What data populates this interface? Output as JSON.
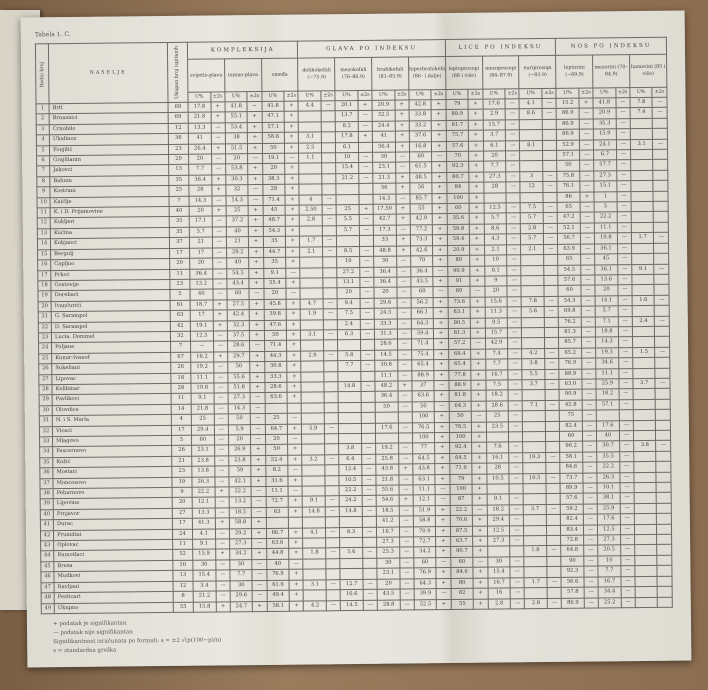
{
  "title": "Tabela 1. C.",
  "headers": {
    "no": "Redni broj",
    "name": "NASELJE",
    "n": "Ukupan broj ispitanih",
    "pct": "U%",
    "sig": "±2s",
    "groups": [
      {
        "label": "KOMPLEKSIJA",
        "subs": [
          "svijetlo-plava",
          "tamno-plava",
          "smeđa"
        ]
      },
      {
        "label": "GLAVA PO INDEKSU",
        "subs": [
          "dolihokefali (−75.9)",
          "mezokefali (76–80.9)",
          "brahikefali (81–85.9)",
          "hiperbrahikefali (86– i dalje)"
        ]
      },
      {
        "label": "LICE PO INDEKSU",
        "subs": [
          "leptoprosopi (88 i više)",
          "mezoprosopi (84–87.9)",
          "euriprosopi (−83.9)"
        ]
      },
      {
        "label": "NOS PO INDEKSU",
        "subs": [
          "leptorini (−69.9)",
          "mezorini (70–84.9)",
          "hamerini (85 i više)"
        ]
      }
    ]
  },
  "rows": [
    [
      "1",
      "Brtl",
      "69",
      "17.8",
      "+",
      "41.8",
      "−",
      "41.8",
      "+",
      "4.4",
      "—",
      "20.1",
      "+",
      "20.9",
      "+",
      "42.8",
      "+",
      "79",
      "+",
      "17.6",
      "—",
      "4.1",
      "—",
      "15.2",
      "+",
      "41.8",
      "—",
      "7.8",
      "—"
    ],
    [
      "2",
      "Brnazaici",
      "69",
      "21.8",
      "+",
      "55.1",
      "+",
      "47.1",
      "+",
      "",
      "",
      "13.7",
      "—",
      "32.5",
      "+",
      "33.8",
      "+",
      "89.9",
      "+",
      "2.9",
      "—",
      "8.6",
      "—",
      "86.9",
      "—",
      "20.9",
      "—",
      "7.4",
      "—"
    ],
    [
      "3",
      "Crnobilo",
      "12",
      "13.3",
      "—",
      "53.4",
      "+",
      "57.1",
      "+",
      "",
      "",
      "8.2",
      "—",
      "24.4",
      "+",
      "33.2",
      "+",
      "81.7",
      "+",
      "15.7",
      "—",
      "",
      "",
      "86.9",
      "—",
      "35.3",
      "—",
      "",
      ""
    ],
    [
      "4",
      "Ukulinoz",
      "36",
      "41",
      "—",
      "38",
      "+",
      "58.8",
      "+",
      "3.1",
      "",
      "17.8",
      "+",
      "41",
      "+",
      "37.6",
      "+",
      "75.7",
      "+",
      "3.7",
      "—",
      "",
      "",
      "86.9",
      "—",
      "15.9",
      "—",
      "",
      ""
    ],
    [
      "5",
      "Fonjilić",
      "23",
      "26.4",
      "+",
      "51.5",
      "+",
      "50",
      "+",
      "2.5",
      "",
      "6.1",
      "",
      "56.4",
      "+",
      "16.8",
      "+",
      "57.6",
      "+",
      "6.1",
      "—",
      "8.1",
      "",
      "52.9",
      "—",
      "24.1",
      "—",
      "3.1",
      "—"
    ],
    [
      "6",
      "Grajilianin",
      "20",
      "20",
      "—",
      "20",
      "—",
      "19.1",
      "—",
      "1.1",
      "",
      "10",
      "—",
      "30",
      "—",
      "60",
      "—",
      "70",
      "+",
      "20",
      "—",
      "",
      "",
      "57.1",
      "—",
      "6.7",
      "—",
      "",
      ""
    ],
    [
      "7",
      "Jakovci",
      "13",
      "7.7",
      "—",
      "53.8",
      "+",
      "20",
      "+",
      "",
      "",
      "15.4",
      "—",
      "23.1",
      "—",
      "61.5",
      "+",
      "92.3",
      "+",
      "7.7",
      "—",
      "",
      "",
      "50",
      "—",
      "57.7",
      "—",
      "",
      ""
    ],
    [
      "8",
      "Bahum",
      "35",
      "36.4",
      "+",
      "30.3",
      "+",
      "38.3",
      "+",
      "",
      "",
      "21.2",
      "—",
      "21.3",
      "+",
      "48.5",
      "+",
      "80.7",
      "+",
      "27.3",
      "—",
      "3",
      "—",
      "75.8",
      "—",
      "27.3",
      "—",
      "",
      ""
    ],
    [
      "9",
      "Kostrani",
      "25",
      "28",
      "+",
      "32",
      "—",
      "28",
      "+",
      "",
      "",
      "",
      "",
      "56",
      "+",
      "56",
      "+",
      "84",
      "+",
      "28",
      "—",
      "12",
      "—",
      "76.1",
      "—",
      "15.1",
      "—",
      "",
      ""
    ],
    [
      "10",
      "Kaićlje",
      "7",
      "14.3",
      "—",
      "14.3",
      "—",
      "71.4",
      "+",
      "4",
      "—",
      "",
      "",
      "14.3",
      "—",
      "85.7",
      "+",
      "100",
      "+",
      "",
      "",
      "",
      "",
      "86",
      "+",
      "1",
      "—",
      "",
      ""
    ],
    [
      "11",
      "K. i D. Prijamovine",
      "40",
      "20",
      "+",
      "25",
      "+",
      "45",
      "+",
      "2.50",
      "—",
      "25",
      "+",
      "17.50",
      "+",
      "55",
      "+",
      "60",
      "+",
      "12.5",
      "—",
      "7.5",
      "—",
      "65",
      "—",
      "5",
      "—",
      "",
      ""
    ],
    [
      "12",
      "Kukljeri",
      "35",
      "17.1",
      "—",
      "37.2",
      "+",
      "48.7",
      "+",
      "2.8",
      "—",
      "5.5",
      "—",
      "42.7",
      "+",
      "42.9",
      "+",
      "35.6",
      "+",
      "5.7",
      "—",
      "5.7",
      "—",
      "47.2",
      "—",
      "22.2",
      "—",
      "",
      ""
    ],
    [
      "13",
      "Kućina",
      "35",
      "5.7",
      "—",
      "40",
      "+",
      "54.3",
      "+",
      "",
      "",
      "5.7",
      "—",
      "17.3",
      "—",
      "77.2",
      "+",
      "59.8",
      "+",
      "8.6",
      "—",
      "2.8",
      "—",
      "52.1",
      "—",
      "11.1",
      "—",
      "",
      ""
    ],
    [
      "14",
      "Kobjanci",
      "37",
      "21",
      "—",
      "21",
      "+",
      "35",
      "+",
      "1.7",
      "—",
      "",
      "",
      "33",
      "+",
      "73.3",
      "+",
      "59.4",
      "+",
      "4.3",
      "—",
      "5.7",
      "—",
      "56.7",
      "—",
      "10.8",
      "—",
      "1.7",
      "—"
    ],
    [
      "15",
      "Bergulj",
      "17",
      "17",
      "—",
      "29.2",
      "+",
      "44.7",
      "+",
      "2.1",
      "—",
      "8.5",
      "—",
      "48.8",
      "+",
      "42.6",
      "+",
      "20.9",
      "+",
      "2.1",
      "—",
      "2.1",
      "—",
      "63.9",
      "—",
      "36.1",
      "—",
      "",
      ""
    ],
    [
      "16",
      "Capljuo",
      "20",
      "20",
      "—",
      "40",
      "+",
      "35",
      "+",
      "",
      "",
      "10",
      "—",
      "30",
      "—",
      "70",
      "+",
      "80",
      "+",
      "10",
      "—",
      "",
      "",
      "65",
      "—",
      "45",
      "—",
      "",
      ""
    ],
    [
      "17",
      "Prkoć",
      "11",
      "36.4",
      "—",
      "54.5",
      "+",
      "9.1",
      "—",
      "",
      "",
      "27.2",
      "—",
      "36.4",
      "—",
      "36.4",
      "—",
      "90.9",
      "+",
      "9.1",
      "—",
      "",
      "",
      "54.5",
      "—",
      "36.1",
      "—",
      "9.1",
      "—"
    ],
    [
      "18",
      "Gostovije",
      "23",
      "13.2",
      "—",
      "43.4",
      "+",
      "55.4",
      "+",
      "",
      "",
      "13.1",
      "—",
      "36.4",
      "—",
      "43.5",
      "+",
      "91",
      "+",
      "9",
      "—",
      "",
      "",
      "57.6",
      "—",
      "13.6",
      "—",
      "",
      ""
    ],
    [
      "19",
      "Dorebaći",
      "5",
      "40",
      "—",
      "60",
      "—",
      "20",
      "—",
      "",
      "",
      "20",
      "—",
      "20",
      "—",
      "60",
      "—",
      "60",
      "—",
      "20",
      "—",
      "",
      "",
      "60",
      "—",
      "20",
      "—",
      "",
      ""
    ],
    [
      "20",
      "Ivančurići",
      "61",
      "18.7",
      "+",
      "27.5",
      "+",
      "45.8",
      "+",
      "4.7",
      "—",
      "9.4",
      "—",
      "29.6",
      "—",
      "56.2",
      "+",
      "73.6",
      "+",
      "15.6",
      "—",
      "7.8",
      "—",
      "54.3",
      "—",
      "14.1",
      "—",
      "1.6",
      "—"
    ],
    [
      "21",
      "G. Sarampol",
      "63",
      "17",
      "+",
      "42.4",
      "+",
      "39.8",
      "+",
      "1.9",
      "—",
      "7.5",
      "—",
      "24.5",
      "—",
      "66.1",
      "+",
      "83.1",
      "+",
      "11.3",
      "—",
      "5.6",
      "—",
      "69.8",
      "—",
      "5.7",
      "—",
      "",
      ""
    ],
    [
      "22",
      "D. Sarampol",
      "42",
      "19.1",
      "+",
      "32.3",
      "+",
      "47.6",
      "+",
      "",
      "",
      "2.4",
      "—",
      "33.3",
      "—",
      "64.3",
      "+",
      "90.5",
      "+",
      "9.5",
      "—",
      "",
      "",
      "76.2",
      "—",
      "7.1",
      "—",
      "2.4",
      "—"
    ],
    [
      "23",
      "Lucia. Dommel",
      "32",
      "12.5",
      "—",
      "37.5",
      "+",
      "50",
      "+",
      "3.1",
      "—",
      "6.3",
      "—",
      "31.3",
      "—",
      "59.4",
      "+",
      "81.3",
      "+",
      "15.7",
      "—",
      "",
      "",
      "81.3",
      "—",
      "18.8",
      "—",
      "",
      ""
    ],
    [
      "24",
      "Poljane",
      "7",
      "—",
      "—",
      "28.6",
      "—",
      "71.4",
      "+",
      "",
      "",
      "",
      "",
      "28.6",
      "—",
      "71.4",
      "+",
      "57.2",
      "—",
      "42.9",
      "—",
      "",
      "",
      "85.7",
      "—",
      "14.3",
      "—",
      "",
      ""
    ],
    [
      "25",
      "Kumir-Ivanof",
      "67",
      "16.2",
      "+",
      "29.7",
      "+",
      "44.3",
      "+",
      "2.9",
      "—",
      "5.8",
      "—",
      "14.5",
      "—",
      "75.4",
      "+",
      "69.4",
      "+",
      "7.4",
      "—",
      "4.2",
      "—",
      "65.2",
      "—",
      "19.3",
      "—",
      "1.5",
      "—"
    ],
    [
      "26",
      "Sukeliani",
      "26",
      "19.2",
      "—",
      "50",
      "+",
      "30.8",
      "+",
      "",
      "",
      "7.7",
      "—",
      "30.8",
      "—",
      "65.4",
      "+",
      "65.4",
      "+",
      "7.7",
      "—",
      "3.8",
      "—",
      "76.9",
      "—",
      "34.6",
      "—",
      "",
      ""
    ],
    [
      "27",
      "Lipovac",
      "18",
      "11.1",
      "—",
      "55.6",
      "+",
      "33.3",
      "+",
      "",
      "",
      "",
      "",
      "11.1",
      "—",
      "88.9",
      "+",
      "77.8",
      "+",
      "16.7",
      "—",
      "5.5",
      "—",
      "88.9",
      "—",
      "11.1",
      "—",
      "",
      ""
    ],
    [
      "28",
      "Kolibinar",
      "28",
      "19.8",
      "—",
      "51.8",
      "+",
      "28.6",
      "+",
      "",
      "",
      "14.8",
      "—",
      "48.2",
      "+",
      "37",
      "—",
      "88.9",
      "+",
      "7.5",
      "—",
      "3.7",
      "—",
      "63.0",
      "—",
      "25.9",
      "—",
      "3.7",
      "—"
    ],
    [
      "29",
      "Pavlikovi",
      "11",
      "9.1",
      "—",
      "27.3",
      "—",
      "63.6",
      "+",
      "",
      "",
      "",
      "",
      "36.4",
      "—",
      "63.6",
      "+",
      "81.8",
      "+",
      "18.2",
      "—",
      "",
      "",
      "90.9",
      "—",
      "18.2",
      "—",
      "",
      ""
    ],
    [
      "30",
      "Olovdice",
      "14",
      "21.8",
      "—",
      "14.3",
      "—",
      "",
      "",
      "",
      "",
      "",
      "",
      "50",
      "—",
      "50",
      "—",
      "64.3",
      "+",
      "28.6",
      "—",
      "7.1",
      "—",
      "42.8",
      "—",
      "57.1",
      "—",
      "",
      ""
    ],
    [
      "31",
      "N. i S. Marla",
      "4",
      "25",
      "—",
      "50",
      "—",
      "25",
      "—",
      "",
      "",
      "",
      "",
      "",
      "",
      "100",
      "+",
      "50",
      "—",
      "25",
      "—",
      "",
      "",
      "75",
      "—",
      "",
      "",
      "",
      ""
    ],
    [
      "32",
      "Vicaci",
      "17",
      "29.4",
      "—",
      "5.9",
      "—",
      "64.7",
      "+",
      "5.9",
      "—",
      "",
      "",
      "17.6",
      "—",
      "76.5",
      "+",
      "76.5",
      "+",
      "23.5",
      "—",
      "",
      "",
      "82.4",
      "—",
      "17.6",
      "—",
      "",
      ""
    ],
    [
      "33",
      "Mlagovo",
      "5",
      "60",
      "—",
      "20",
      "—",
      "20",
      "—",
      "",
      "",
      "",
      "",
      "",
      "",
      "100",
      "+",
      "100",
      "+",
      "",
      "",
      "",
      "",
      "60",
      "—",
      "40",
      "—",
      "",
      ""
    ],
    [
      "34",
      "Pascernovo",
      "26",
      "23.1",
      "—",
      "26.9",
      "+",
      "50",
      "+",
      "",
      "",
      "3.8",
      "—",
      "19.2",
      "—",
      "77",
      "+",
      "92.4",
      "+",
      "7.6",
      "—",
      "",
      "",
      "96.2",
      "—",
      "30.7",
      "—",
      "3.8",
      "—"
    ],
    [
      "35",
      "Kožić",
      "21",
      "23.8",
      "—",
      "23.8",
      "+",
      "52.4",
      "+",
      "3.2",
      "—",
      "6.4",
      "—",
      "25.8",
      "—",
      "64.5",
      "+",
      "64.5",
      "+",
      "16.1",
      "—",
      "19.3",
      "—",
      "58.1",
      "—",
      "35.5",
      "—",
      "",
      ""
    ],
    [
      "36",
      "Mostari",
      "23",
      "13.8",
      "—",
      "59",
      "+",
      "8.2",
      "—",
      "",
      "",
      "12.4",
      "—",
      "43.8",
      "+",
      "43.8",
      "+",
      "71.9",
      "+",
      "28",
      "—",
      "",
      "",
      "84.6",
      "—",
      "22.2",
      "—",
      "",
      ""
    ],
    [
      "37",
      "Moncosovo",
      "19",
      "26.3",
      "—",
      "42.1",
      "+",
      "31.6",
      "+",
      "",
      "",
      "10.5",
      "—",
      "21.8",
      "—",
      "63.1",
      "+",
      "79",
      "+",
      "10.5",
      "—",
      "10.5",
      "—",
      "73.7",
      "—",
      "26.3",
      "—",
      "",
      ""
    ],
    [
      "38",
      "Peharnovo",
      "9",
      "22.2",
      "+",
      "22.2",
      "—",
      "11.1",
      "—",
      "",
      "",
      "22.2",
      "—",
      "55.6",
      "—",
      "11.1",
      "—",
      "100",
      "+",
      "",
      "",
      "",
      "",
      "89.9",
      "—",
      "10.1",
      "—",
      "",
      ""
    ],
    [
      "39",
      "Lipovine",
      "20",
      "12.1",
      "—",
      "13.2",
      "—",
      "72.7",
      "+",
      "9.1",
      "—",
      "24.2",
      "—",
      "54.6",
      "+",
      "12.1",
      "—",
      "87",
      "+",
      "9.1",
      "—",
      "",
      "",
      "57.6",
      "—",
      "38.1",
      "—",
      "",
      ""
    ],
    [
      "40",
      "Prnjavor",
      "27",
      "13.3",
      "—",
      "18.5",
      "—",
      "63",
      "+",
      "14.8",
      "—",
      "14.8",
      "—",
      "18.5",
      "—",
      "51.9",
      "+",
      "22.2",
      "—",
      "18.2",
      "—",
      "3.7",
      "—",
      "59.2",
      "—",
      "25.9",
      "—",
      "",
      ""
    ],
    [
      "41",
      "Durac",
      "17",
      "41.3",
      "+",
      "58.8",
      "+",
      "",
      "",
      "",
      "",
      "",
      "",
      "41.2",
      "—",
      "58.8",
      "+",
      "70.6",
      "+",
      "29.4",
      "—",
      "",
      "",
      "82.4",
      "—",
      "17.6",
      "—",
      "",
      ""
    ],
    [
      "42",
      "Prunidini",
      "24",
      "4.1",
      "—",
      "29.2",
      "+",
      "66.7",
      "+",
      "4.1",
      "—",
      "8.3",
      "—",
      "16.7",
      "—",
      "70.9",
      "+",
      "87.5",
      "+",
      "12.5",
      "—",
      "",
      "",
      "83.4",
      "—",
      "12.5",
      "—",
      "",
      ""
    ],
    [
      "43",
      "Oplovac",
      "11",
      "9.1",
      "—",
      "27.3",
      "—",
      "63.6",
      "+",
      "",
      "",
      "",
      "",
      "27.3",
      "—",
      "72.7",
      "+",
      "63.7",
      "+",
      "27.3",
      "—",
      "",
      "",
      "72.8",
      "—",
      "27.3",
      "—",
      "",
      ""
    ],
    [
      "44",
      "Rumotlaci",
      "52",
      "15.9",
      "+",
      "34.2",
      "+",
      "44.8",
      "+",
      "1.8",
      "—",
      "5.6",
      "—",
      "25.3",
      "—",
      "34.2",
      "+",
      "90.7",
      "+",
      "",
      "",
      "1.8",
      "—",
      "64.8",
      "—",
      "20.5",
      "—",
      "",
      ""
    ],
    [
      "45",
      "Breza",
      "10",
      "30",
      "—",
      "30",
      "—",
      "40",
      "—",
      "",
      "",
      "",
      "",
      "30",
      "—",
      "60",
      "—",
      "60",
      "—",
      "30",
      "—",
      "",
      "",
      "90",
      "—",
      "10",
      "—",
      "",
      ""
    ],
    [
      "46",
      "Mudkovi",
      "13",
      "15.4",
      "—",
      "7.7",
      "—",
      "76.9",
      "+",
      "",
      "",
      "",
      "",
      "23.1",
      "—",
      "76.9",
      "+",
      "84.6",
      "+",
      "15.4",
      "—",
      "",
      "",
      "92.3",
      "—",
      "7.7",
      "—",
      "",
      ""
    ],
    [
      "47",
      "Ravljani",
      "12",
      "3.4",
      "—",
      "30",
      "—",
      "61.6",
      "+",
      "3.1",
      "—",
      "12.7",
      "—",
      "20",
      "—",
      "64.3",
      "+",
      "80",
      "+",
      "16.7",
      "—",
      "1.7",
      "—",
      "56.6",
      "—",
      "16.7",
      "—",
      "",
      ""
    ],
    [
      "48",
      "Pesticari",
      "8",
      "21.2",
      "—",
      "29.6",
      "—",
      "49.4",
      "+",
      "",
      "",
      "16.6",
      "—",
      "43.5",
      "—",
      "39.9",
      "—",
      "82",
      "+",
      "16",
      "—",
      "",
      "",
      "57.8",
      "—",
      "34.4",
      "—",
      "",
      ""
    ],
    [
      "49",
      "Ukupno",
      "55",
      "15.8",
      "+",
      "24.7",
      "+",
      "58.1",
      "+",
      "4.2",
      "—",
      "14.5",
      "—",
      "28.8",
      "—",
      "52.5",
      "+",
      "55",
      "+",
      "2.8",
      "—",
      "2.8",
      "—",
      "86.9",
      "—",
      "25.2",
      "—",
      "",
      ""
    ]
  ],
  "notes": {
    "plus": "+ podatak je signifikantan",
    "minus": "— podatak nije signifikantan",
    "formula": "Signifikantnost izračunata po formuli: s = ±2 √(p(100−p)/n)",
    "s": "s = standardna greška"
  }
}
